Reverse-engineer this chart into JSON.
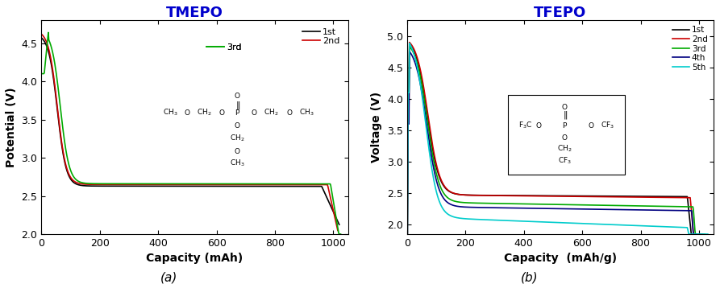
{
  "panel_a": {
    "title": "TMEPO",
    "xlabel": "Capacity (mAh)",
    "ylabel": "Potential (V)",
    "xlim": [
      0,
      1050
    ],
    "ylim": [
      2.0,
      4.8
    ],
    "yticks": [
      2.0,
      2.5,
      3.0,
      3.5,
      4.0,
      4.5
    ],
    "xticks": [
      0,
      200,
      400,
      600,
      800,
      1000
    ],
    "legend": [
      "1st",
      "2nd",
      "3rd"
    ],
    "colors": [
      "#000000",
      "#cc0000",
      "#00aa00"
    ],
    "linewidths": [
      1.2,
      1.2,
      1.2
    ]
  },
  "panel_b": {
    "title": "TFEPO",
    "xlabel": "Capacity  (mAh/g)",
    "ylabel": "Voltage (V)",
    "xlim": [
      0,
      1050
    ],
    "ylim": [
      1.85,
      5.25
    ],
    "yticks": [
      2.0,
      2.5,
      3.0,
      3.5,
      4.0,
      4.5,
      5.0
    ],
    "xticks": [
      0,
      200,
      400,
      600,
      800,
      1000
    ],
    "legend": [
      "1st",
      "2nd",
      "3rd",
      "4th",
      "5th"
    ],
    "colors": [
      "#000000",
      "#cc0000",
      "#00aa00",
      "#000080",
      "#00cccc"
    ],
    "linewidths": [
      1.2,
      1.2,
      1.2,
      1.2,
      1.2
    ]
  },
  "label_a": "(a)",
  "label_b": "(b)",
  "background": "#ffffff",
  "title_color": "#0000cc",
  "title_fontsize": 13,
  "axis_fontsize": 10,
  "tick_fontsize": 9
}
